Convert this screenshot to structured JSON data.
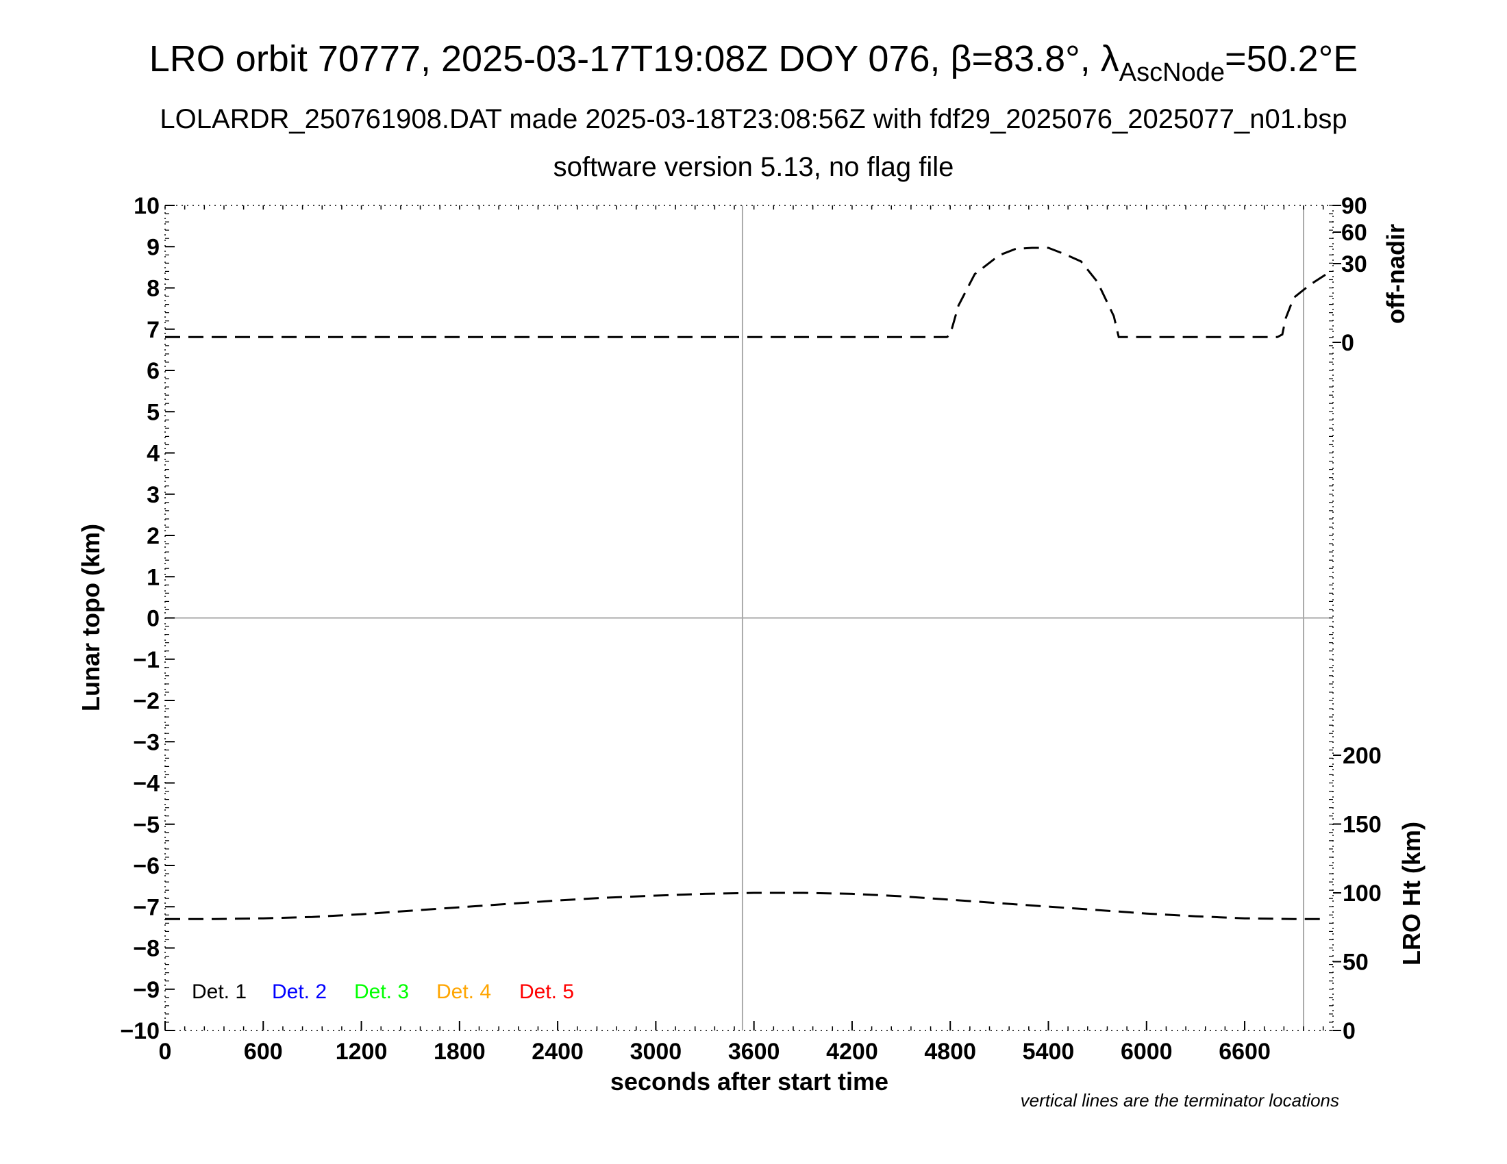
{
  "header": {
    "title_main": "LRO orbit 70777, 2025-03-17T19:08Z DOY 076, β=83.8°, λ",
    "title_sub": "AscNode",
    "title_tail": "=50.2°E",
    "subtitle1": "LOLARDR_250761908.DAT made 2025-03-18T23:08:56Z with fdf29_2025076_2025077_n01.bsp",
    "subtitle2": "software version 5.13, no flag file"
  },
  "footer_note": "vertical lines are the terminator locations",
  "colors": {
    "det1": "#000000",
    "det2": "#0000ff",
    "det3": "#00ff00",
    "det4": "#ffa500",
    "det5": "#ff0000",
    "grid": "#aaaaaa"
  },
  "chart_data": {
    "type": "line",
    "xlabel": "seconds after start time",
    "ylabel_left": "Lunar topo (km)",
    "ylabel_right_top": "off-nadir",
    "ylabel_right_bottom": "LRO Ht (km)",
    "xlim": [
      0,
      7140
    ],
    "ylim_left": [
      -10,
      10
    ],
    "x_ticks": [
      "0",
      "600",
      "1200",
      "1800",
      "2400",
      "3000",
      "3600",
      "4200",
      "4800",
      "5400",
      "6000",
      "6600"
    ],
    "y_ticks_left": [
      "−10",
      "−9",
      "−8",
      "−7",
      "−6",
      "−5",
      "−4",
      "−3",
      "−2",
      "−1",
      "0",
      "1",
      "2",
      "3",
      "4",
      "5",
      "6",
      "7",
      "8",
      "9",
      "10"
    ],
    "right_top_ticks": [
      {
        "label": "90",
        "value": 90
      },
      {
        "label": "60",
        "value": 60
      },
      {
        "label": "30",
        "value": 30
      },
      {
        "label": "0",
        "value": 0
      }
    ],
    "right_bottom_ticks": [
      {
        "label": "200",
        "value": 200
      },
      {
        "label": "150",
        "value": 150
      },
      {
        "label": "100",
        "value": 100
      },
      {
        "label": "50",
        "value": 50
      },
      {
        "label": "0",
        "value": 0
      }
    ],
    "terminator_lines_x": [
      3530,
      6960
    ],
    "legend": [
      "Det. 1",
      "Det. 2",
      "Det. 3",
      "Det. 4",
      "Det. 5"
    ],
    "series": [
      {
        "name": "off-nadir",
        "axis": "off-nadir (deg)",
        "x": [
          0,
          1000,
          2000,
          3000,
          4000,
          4780,
          4800,
          4850,
          4950,
          5100,
          5200,
          5300,
          5400,
          5500,
          5600,
          5700,
          5800,
          5830,
          5850,
          5900,
          6000,
          6500,
          6800,
          6830,
          6850,
          6900,
          7000,
          7100
        ],
        "y": [
          2,
          2,
          2,
          2,
          2,
          2,
          3,
          14,
          26,
          38,
          44,
          45,
          45,
          39,
          32,
          23,
          10,
          2,
          2,
          2,
          2,
          2,
          2,
          3,
          9,
          17,
          22,
          26
        ]
      },
      {
        "name": "LRO Ht",
        "axis": "LRO Ht (km)",
        "x": [
          0,
          300,
          600,
          900,
          1200,
          1500,
          1800,
          2100,
          2400,
          2700,
          3000,
          3300,
          3600,
          3900,
          4200,
          4500,
          4800,
          5100,
          5400,
          5700,
          6000,
          6300,
          6600,
          6900,
          7100
        ],
        "y": [
          81,
          81,
          81.5,
          82.5,
          84.5,
          87,
          89.5,
          92,
          94.5,
          96.5,
          98,
          99.3,
          100,
          100,
          99.3,
          97.5,
          95,
          92.5,
          90,
          87.5,
          85,
          83,
          81.5,
          81,
          81
        ]
      }
    ]
  }
}
